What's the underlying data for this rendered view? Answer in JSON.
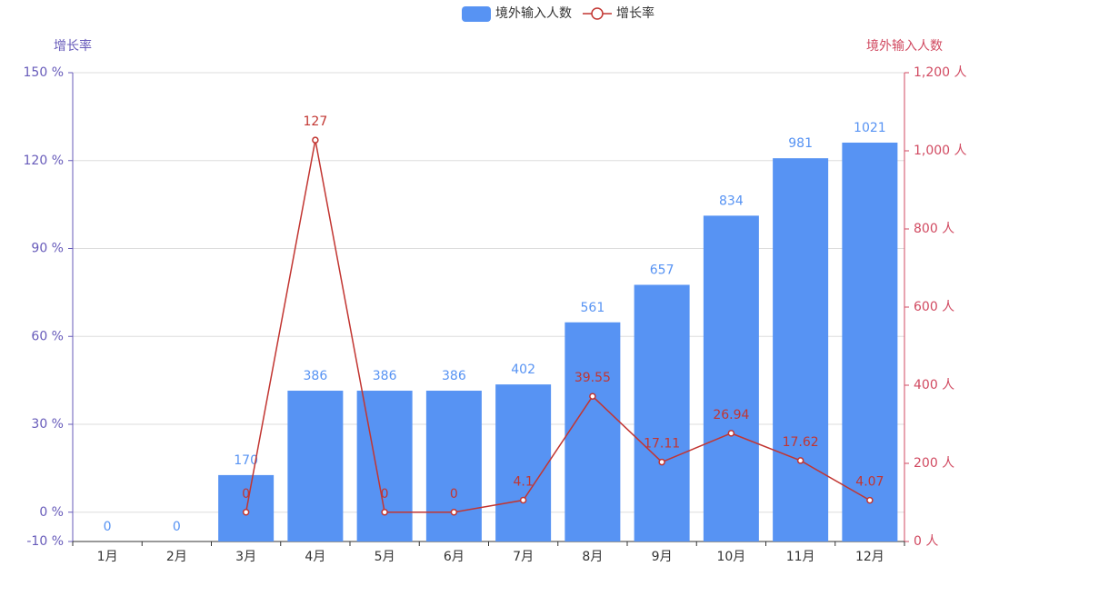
{
  "chart_data": {
    "type": "bar",
    "categories": [
      "1月",
      "2月",
      "3月",
      "4月",
      "5月",
      "6月",
      "7月",
      "8月",
      "9月",
      "10月",
      "11月",
      "12月"
    ],
    "series": [
      {
        "name": "境外输入人数",
        "type": "bar",
        "axis": "y2",
        "color": "#5793f3",
        "values": [
          0,
          0,
          170,
          386,
          386,
          386,
          402,
          561,
          657,
          834,
          981,
          1021
        ]
      },
      {
        "name": "增长率",
        "type": "line",
        "axis": "y",
        "color": "#c23531",
        "values": [
          null,
          null,
          0,
          127,
          0,
          0,
          4.1,
          39.55,
          17.11,
          26.94,
          17.62,
          4.07
        ]
      }
    ],
    "y_label": "增长率",
    "y_color": "#675bba",
    "y2_label": "境外输入人数",
    "y2_color": "#d14a61",
    "ylim": [
      -10,
      150
    ],
    "yticks": [
      {
        "value": -10,
        "label": "-10 %"
      },
      {
        "value": 0,
        "label": "0 %"
      },
      {
        "value": 30,
        "label": "30 %"
      },
      {
        "value": 60,
        "label": "60 %"
      },
      {
        "value": 90,
        "label": "90 %"
      },
      {
        "value": 120,
        "label": "120 %"
      },
      {
        "value": 150,
        "label": "150 %"
      }
    ],
    "y2lim": [
      0,
      1200
    ],
    "y2ticks": [
      {
        "value": 0,
        "label": "0 人"
      },
      {
        "value": 200,
        "label": "200 人"
      },
      {
        "value": 400,
        "label": "400 人"
      },
      {
        "value": 600,
        "label": "600 人"
      },
      {
        "value": 800,
        "label": "800 人"
      },
      {
        "value": 1000,
        "label": "1,000 人"
      },
      {
        "value": 1200,
        "label": "1,200 人"
      }
    ],
    "grid": true,
    "legend": "top"
  }
}
